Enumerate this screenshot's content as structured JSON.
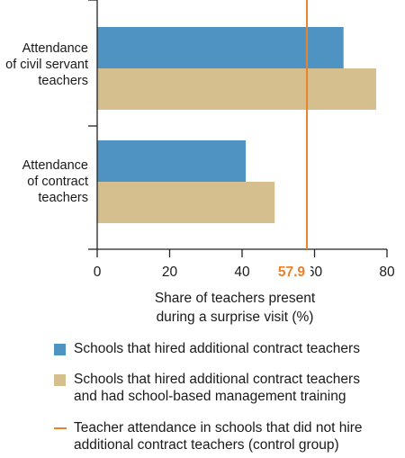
{
  "chart_data": {
    "type": "bar",
    "orientation": "horizontal",
    "categories": [
      "Attendance of civil servant teachers",
      "Attendance of contract teachers"
    ],
    "category_lines": [
      [
        "Attendance",
        "of civil servant",
        "teachers"
      ],
      [
        "Attendance",
        "of contract",
        "teachers"
      ]
    ],
    "series": [
      {
        "name": "Schools that hired additional contract teachers",
        "values": [
          68,
          41
        ],
        "color": "#4e93c1"
      },
      {
        "name": "Schools that hired additional contract teachers and had school-based management training",
        "values": [
          77,
          49
        ],
        "color": "#d5bf8e"
      }
    ],
    "reference_line": {
      "name": "Teacher attendance in schools that did not hire additional contract teachers (control group)",
      "value": 57.9,
      "label": "57.9",
      "color": "#e9832b"
    },
    "xlim": [
      0,
      80
    ],
    "xticks": [
      "0",
      "20",
      "40",
      "60",
      "80"
    ],
    "xlabel_lines": [
      "Share of teachers present",
      "during a surprise visit (%)"
    ],
    "legend_position": "bottom",
    "grid": false
  },
  "legend": {
    "items": [
      {
        "lines": [
          "Schools that hired additional contract teachers"
        ]
      },
      {
        "lines": [
          "Schools that hired additional contract teachers",
          "and had school-based management training"
        ]
      },
      {
        "lines": [
          "Teacher attendance in schools that did not hire",
          "additional contract teachers (control group)"
        ]
      }
    ]
  }
}
